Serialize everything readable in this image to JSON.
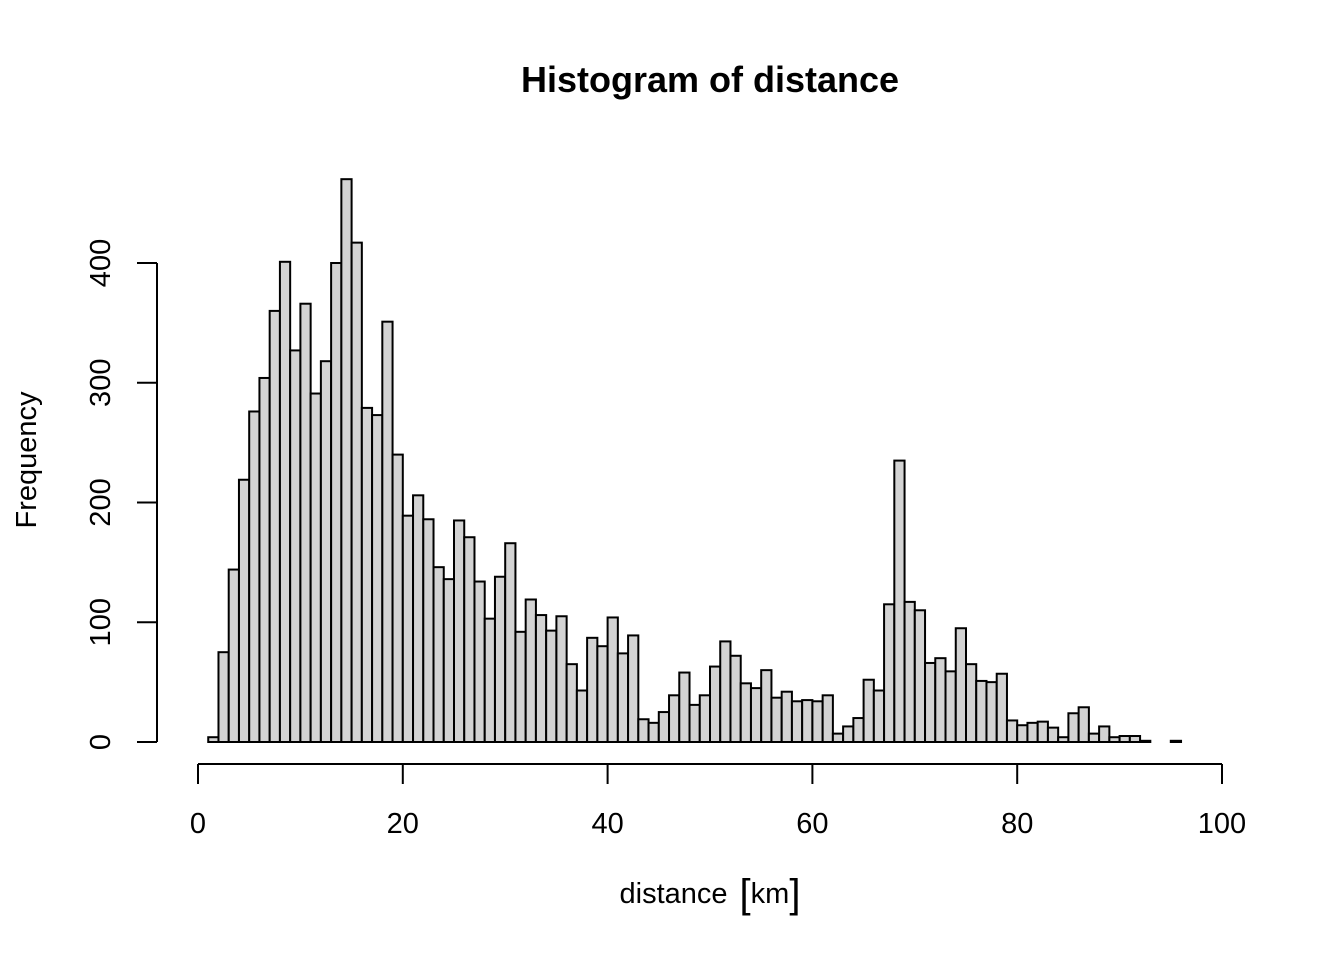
{
  "chart_data": {
    "type": "bar",
    "title": "Histogram of distance",
    "xlabel": "distance",
    "xunit": "km",
    "ylabel": "Frequency",
    "xlim": [
      0,
      100
    ],
    "ylim": [
      0,
      470
    ],
    "bin_width": 1,
    "bin_start": 0,
    "x_ticks": [
      "0",
      "20",
      "40",
      "60",
      "80",
      "100"
    ],
    "y_ticks": [
      "0",
      "100",
      "200",
      "300",
      "400"
    ],
    "grid": false,
    "values": [
      0,
      4,
      75,
      144,
      219,
      276,
      304,
      360,
      401,
      327,
      366,
      291,
      318,
      400,
      470,
      417,
      279,
      273,
      351,
      240,
      189,
      206,
      186,
      146,
      136,
      185,
      171,
      134,
      103,
      138,
      166,
      92,
      119,
      106,
      93,
      105,
      65,
      43,
      87,
      80,
      104,
      74,
      89,
      19,
      16,
      25,
      39,
      58,
      31,
      39,
      63,
      84,
      72,
      49,
      45,
      60,
      37,
      42,
      34,
      35,
      34,
      39,
      7,
      13,
      20,
      52,
      43,
      115,
      235,
      117,
      110,
      66,
      70,
      59,
      95,
      65,
      51,
      50,
      57,
      18,
      14,
      16,
      17,
      12,
      4,
      24,
      29,
      7,
      13,
      4,
      5,
      5,
      1,
      0,
      0,
      1,
      0,
      0,
      0,
      0
    ]
  }
}
